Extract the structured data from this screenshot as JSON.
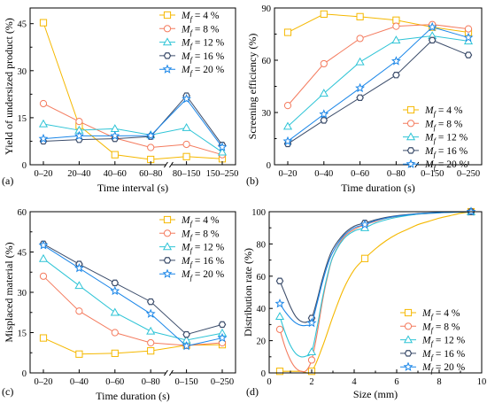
{
  "legend_series": [
    "M_f = 4 %",
    "M_f = 8 %",
    "M_f = 12 %",
    "M_f = 16 %",
    "M_f = 20 %"
  ],
  "colors": {
    "s1": "#f5b800",
    "s2": "#f47b5e",
    "s3": "#2ec4d6",
    "s4": "#3c4d6b",
    "s5": "#1a86e8"
  },
  "markers": [
    "square",
    "circle",
    "triangle",
    "hexagon",
    "star"
  ],
  "chart_data": [
    {
      "type": "line",
      "panel_label": "(a)",
      "xlabel": "Time interval (s)",
      "ylabel": "Yield of undersized product (%)",
      "categories": [
        "0–20",
        "20–40",
        "40–60",
        "60–80",
        "80–150",
        "150–250"
      ],
      "axis_break": "between 60–80 and 80–150",
      "ylim": [
        0,
        50
      ],
      "yticks": [
        0,
        15,
        30,
        45
      ],
      "legend": "top-right",
      "series": [
        {
          "name": "M_f = 4 %",
          "values": [
            45.3,
            12.5,
            3.2,
            1.7,
            2.6,
            1.9
          ]
        },
        {
          "name": "M_f = 8 %",
          "values": [
            19.5,
            13.8,
            8.5,
            5.5,
            6.5,
            3.2
          ]
        },
        {
          "name": "M_f = 12 %",
          "values": [
            13.0,
            11.0,
            11.5,
            9.5,
            11.8,
            4.0
          ]
        },
        {
          "name": "M_f = 16 %",
          "values": [
            7.5,
            8.0,
            8.3,
            9.0,
            22.0,
            6.3
          ]
        },
        {
          "name": "M_f = 20 %",
          "values": [
            8.3,
            9.2,
            9.2,
            9.3,
            21.0,
            5.6
          ]
        }
      ]
    },
    {
      "type": "line",
      "panel_label": "(b)",
      "xlabel": "Time duration (s)",
      "ylabel": "Screening efficiency (%)",
      "categories": [
        "0–20",
        "0–40",
        "0–60",
        "0–80",
        "0–150",
        "0–250"
      ],
      "axis_break": "between 0–80 and 0–150",
      "ylim": [
        0,
        90
      ],
      "yticks": [
        0,
        30,
        60,
        90
      ],
      "legend": "bottom-right",
      "series": [
        {
          "name": "M_f = 4 %",
          "values": [
            76,
            86.5,
            85,
            83,
            79,
            76
          ]
        },
        {
          "name": "M_f = 8 %",
          "values": [
            34,
            58,
            72.5,
            79.5,
            80.5,
            78
          ]
        },
        {
          "name": "M_f = 12 %",
          "values": [
            22,
            41,
            59,
            71.5,
            74,
            71
          ]
        },
        {
          "name": "M_f = 16 %",
          "values": [
            12,
            25.5,
            38.5,
            51.5,
            71.5,
            63
          ]
        },
        {
          "name": "M_f = 20 %",
          "values": [
            13.5,
            29,
            44,
            59.5,
            79,
            73
          ]
        }
      ]
    },
    {
      "type": "line",
      "panel_label": "(c)",
      "xlabel": "Time duration (s)",
      "ylabel": "Misplaced material (%)",
      "categories": [
        "0–20",
        "0–40",
        "0–60",
        "0–80",
        "0–150",
        "0–250"
      ],
      "axis_break": "between 0–80 and 0–150",
      "ylim": [
        0,
        60
      ],
      "yticks": [
        0,
        15,
        30,
        45,
        60
      ],
      "legend": "top-right",
      "series": [
        {
          "name": "M_f = 4 %",
          "values": [
            13,
            7,
            7.3,
            8.2,
            10.3,
            10.5
          ]
        },
        {
          "name": "M_f = 8 %",
          "values": [
            36,
            23,
            15,
            11.2,
            10.2,
            11.2
          ]
        },
        {
          "name": "M_f = 12 %",
          "values": [
            42.5,
            32.5,
            22.5,
            15.5,
            12.2,
            14.8
          ]
        },
        {
          "name": "M_f = 16 %",
          "values": [
            48,
            40.5,
            33.5,
            26.5,
            14.3,
            18
          ]
        },
        {
          "name": "M_f = 20 %",
          "values": [
            47.5,
            39,
            30.5,
            22,
            10,
            13
          ]
        }
      ]
    },
    {
      "type": "line",
      "panel_label": "(d)",
      "xlabel": "Size (mm)",
      "ylabel": "Distribution rate (%)",
      "xlim": [
        0,
        10
      ],
      "xticks": [
        0,
        2,
        4,
        6,
        8,
        10
      ],
      "ylim": [
        0,
        100
      ],
      "yticks": [
        0,
        20,
        40,
        60,
        80,
        100
      ],
      "legend": "bottom-right",
      "series": [
        {
          "name": "M_f = 4 %",
          "x": [
            0.5,
            2,
            4.5,
            9.5
          ],
          "values": [
            1,
            1,
            71,
            100
          ],
          "curve_x": [
            0.5,
            1,
            1.5,
            2,
            2.5,
            3,
            3.5,
            4,
            4.5,
            5,
            5.5,
            6,
            6.5,
            7,
            7.5,
            8,
            8.5,
            9,
            9.5
          ],
          "curve_y": [
            1,
            1,
            1,
            1,
            16,
            35,
            52,
            64,
            71,
            77,
            82,
            86,
            89,
            92,
            94,
            96,
            97.5,
            99,
            100
          ]
        },
        {
          "name": "M_f = 8 %",
          "x": [
            0.5,
            2,
            4.5,
            9.5
          ],
          "values": [
            27,
            8,
            92,
            100
          ],
          "curve_x": [
            0.5,
            0.75,
            1,
            1.25,
            1.5,
            1.75,
            2,
            2.25,
            2.5,
            2.75,
            3,
            3.5,
            4,
            4.5,
            5,
            5.5,
            6,
            7,
            8,
            9,
            9.5
          ],
          "curve_y": [
            27,
            16,
            8,
            3,
            1,
            1.5,
            8,
            24,
            44,
            60,
            72,
            84,
            89,
            92,
            94,
            96,
            97,
            98.5,
            99.3,
            99.8,
            100
          ]
        },
        {
          "name": "M_f = 12 %",
          "x": [
            0.5,
            2,
            4.5,
            9.5
          ],
          "values": [
            35,
            13,
            90,
            100
          ],
          "curve_x": [
            0.5,
            0.75,
            1,
            1.25,
            1.5,
            1.75,
            2,
            2.25,
            2.5,
            2.75,
            3,
            3.5,
            4,
            4.5,
            5,
            5.5,
            6,
            7,
            8,
            9,
            9.5
          ],
          "curve_y": [
            35,
            25,
            17,
            12,
            10,
            10.5,
            13,
            28,
            46,
            61,
            72,
            83,
            88,
            90,
            93,
            95,
            96.5,
            98.5,
            99.3,
            99.8,
            100
          ]
        },
        {
          "name": "M_f = 16 %",
          "x": [
            0.5,
            2,
            4.5,
            9.5
          ],
          "values": [
            57,
            34,
            93,
            100
          ],
          "curve_x": [
            0.5,
            0.75,
            1,
            1.25,
            1.5,
            1.75,
            2,
            2.25,
            2.5,
            2.75,
            3,
            3.5,
            4,
            4.5,
            5,
            5.5,
            6,
            7,
            8,
            9,
            9.5
          ],
          "curve_y": [
            57,
            49,
            41,
            35,
            32,
            31.5,
            34,
            45,
            58,
            69,
            77,
            86,
            91,
            93,
            95,
            96.5,
            97.5,
            98.8,
            99.5,
            99.9,
            100
          ]
        },
        {
          "name": "M_f = 20 %",
          "x": [
            0.5,
            2,
            4.5,
            9.5
          ],
          "values": [
            43,
            31,
            92,
            100
          ],
          "curve_x": [
            0.5,
            0.75,
            1,
            1.25,
            1.5,
            1.75,
            2,
            2.25,
            2.5,
            2.75,
            3,
            3.5,
            4,
            4.5,
            5,
            5.5,
            6,
            7,
            8,
            9,
            9.5
          ],
          "curve_y": [
            43,
            38,
            34,
            31,
            29.5,
            29.5,
            31,
            43,
            56,
            67,
            75,
            85,
            90,
            92,
            94.5,
            96,
            97.2,
            98.7,
            99.4,
            99.9,
            100
          ]
        }
      ]
    }
  ]
}
